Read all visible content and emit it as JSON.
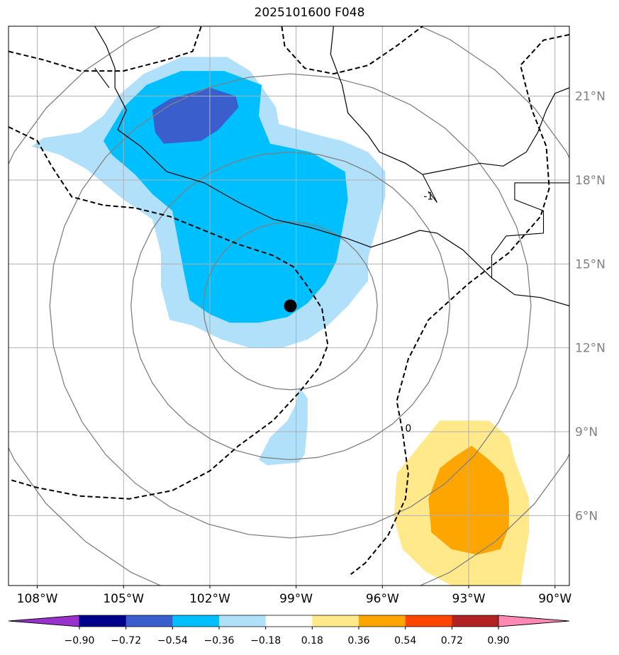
{
  "title": "2025101600 F048",
  "chart_data": {
    "type": "map-contour",
    "title": "2025101600 F048",
    "lon_range": [
      -109,
      -89.5
    ],
    "lat_range": [
      3.5,
      23.5
    ],
    "x_ticks": [
      {
        "value": -108,
        "label": "108°W"
      },
      {
        "value": -105,
        "label": "105°W"
      },
      {
        "value": -102,
        "label": "102°W"
      },
      {
        "value": -99,
        "label": "99°W"
      },
      {
        "value": -96,
        "label": "96°W"
      },
      {
        "value": -93,
        "label": "93°W"
      },
      {
        "value": -90,
        "label": "90°W"
      }
    ],
    "y_ticks": [
      {
        "value": 6,
        "label": "6°N"
      },
      {
        "value": 9,
        "label": "9°N"
      },
      {
        "value": 12,
        "label": "12°N"
      },
      {
        "value": 15,
        "label": "15°N"
      },
      {
        "value": 18,
        "label": "18°N"
      },
      {
        "value": 21,
        "label": "21°N"
      }
    ],
    "storm_center": {
      "lon": -99.2,
      "lat": 13.5
    },
    "range_rings": [
      {
        "lon": -99.2,
        "lat": 13.5,
        "radius_deg": 3
      },
      {
        "lon": -99.2,
        "lat": 13.5,
        "radius_deg": 5.5
      },
      {
        "lon": -99.2,
        "lat": 13.5,
        "radius_deg": 8.3
      },
      {
        "lon": -99.2,
        "lat": 13.5,
        "radius_deg": 11
      }
    ],
    "colorbar": {
      "labels": [
        "−0.90",
        "−0.72",
        "−0.54",
        "−0.36",
        "−0.18",
        "0.18",
        "0.36",
        "0.54",
        "0.72",
        "0.90"
      ],
      "colors": [
        "#9932cc",
        "#00008b",
        "#3a5fcd",
        "#00bfff",
        "#b0e0fa",
        "#ffffff",
        "#ffe98a",
        "#ffa500",
        "#ff4500",
        "#b22222",
        "#ff88b4"
      ]
    },
    "shaded_regions": [
      {
        "level": "-0.36 to -0.18",
        "color": "#b0e0fa",
        "points": [
          [
            -107.8,
            19.5
          ],
          [
            -106.5,
            19.7
          ],
          [
            -105.7,
            20.3
          ],
          [
            -105.2,
            21.0
          ],
          [
            -104.3,
            21.8
          ],
          [
            -103.0,
            22.4
          ],
          [
            -101.4,
            22.4
          ],
          [
            -100.6,
            21.9
          ],
          [
            -100.1,
            21.2
          ],
          [
            -99.7,
            20.6
          ],
          [
            -99.6,
            20.0
          ],
          [
            -98.2,
            19.6
          ],
          [
            -97.4,
            19.4
          ],
          [
            -96.5,
            19.0
          ],
          [
            -95.9,
            18.3
          ],
          [
            -95.9,
            17.4
          ],
          [
            -96.2,
            16.3
          ],
          [
            -96.5,
            15.2
          ],
          [
            -96.5,
            14.4
          ],
          [
            -97.2,
            13.5
          ],
          [
            -97.9,
            12.8
          ],
          [
            -98.6,
            12.3
          ],
          [
            -99.5,
            12.0
          ],
          [
            -100.6,
            12.0
          ],
          [
            -101.6,
            12.3
          ],
          [
            -102.6,
            12.8
          ],
          [
            -103.4,
            13.0
          ],
          [
            -103.7,
            14.2
          ],
          [
            -103.7,
            15.4
          ],
          [
            -104.0,
            16.6
          ],
          [
            -105.0,
            17.3
          ],
          [
            -106.3,
            18.4
          ],
          [
            -107.2,
            18.9
          ],
          [
            -108.2,
            19.2
          ]
        ]
      },
      {
        "level": "-0.54 to -0.36",
        "color": "#00bfff",
        "points": [
          [
            -105.7,
            19.4
          ],
          [
            -105.0,
            20.6
          ],
          [
            -104.2,
            21.4
          ],
          [
            -103.0,
            21.9
          ],
          [
            -101.5,
            21.9
          ],
          [
            -100.2,
            21.4
          ],
          [
            -100.3,
            20.3
          ],
          [
            -99.9,
            19.3
          ],
          [
            -98.5,
            19.0
          ],
          [
            -97.3,
            18.3
          ],
          [
            -97.2,
            17.3
          ],
          [
            -97.4,
            16.2
          ],
          [
            -97.6,
            15.1
          ],
          [
            -98.0,
            14.3
          ],
          [
            -98.6,
            13.6
          ],
          [
            -99.3,
            13.1
          ],
          [
            -100.3,
            12.9
          ],
          [
            -101.3,
            12.9
          ],
          [
            -102.0,
            13.2
          ],
          [
            -102.7,
            13.7
          ],
          [
            -102.9,
            14.7
          ],
          [
            -103.1,
            15.8
          ],
          [
            -103.3,
            16.9
          ],
          [
            -104.0,
            17.5
          ],
          [
            -104.6,
            18.2
          ],
          [
            -105.4,
            18.9
          ]
        ]
      },
      {
        "level": "-0.72 to -0.54",
        "color": "#3a5fcd",
        "points": [
          [
            -104.0,
            20.5
          ],
          [
            -103.4,
            20.9
          ],
          [
            -102.0,
            21.3
          ],
          [
            -101.1,
            21.0
          ],
          [
            -101.0,
            20.6
          ],
          [
            -101.7,
            19.8
          ],
          [
            -102.3,
            19.4
          ],
          [
            -103.6,
            19.3
          ],
          [
            -103.9,
            19.7
          ]
        ]
      },
      {
        "level": "-0.36 to -0.18",
        "color": "#b0e0fa",
        "points": [
          [
            -98.9,
            10.6
          ],
          [
            -98.6,
            10.2
          ],
          [
            -98.6,
            9.3
          ],
          [
            -98.7,
            8.2
          ],
          [
            -98.9,
            7.9
          ],
          [
            -100.0,
            7.8
          ],
          [
            -100.3,
            8.0
          ],
          [
            -99.9,
            8.8
          ],
          [
            -99.3,
            9.4
          ],
          [
            -99.0,
            10.0
          ]
        ]
      },
      {
        "level": "0.18 to 0.36",
        "color": "#ffe98a",
        "points": [
          [
            -94.0,
            9.4
          ],
          [
            -92.3,
            9.4
          ],
          [
            -91.6,
            8.8
          ],
          [
            -91.4,
            8.0
          ],
          [
            -90.9,
            6.6
          ],
          [
            -90.9,
            5.4
          ],
          [
            -91.2,
            3.5
          ],
          [
            -93.6,
            3.5
          ],
          [
            -94.5,
            4.0
          ],
          [
            -95.3,
            4.8
          ],
          [
            -95.6,
            5.9
          ],
          [
            -95.5,
            7.5
          ],
          [
            -94.8,
            8.4
          ]
        ]
      },
      {
        "level": "0.36 to 0.54",
        "color": "#ffa500",
        "points": [
          [
            -92.9,
            8.5
          ],
          [
            -92.3,
            8.0
          ],
          [
            -91.8,
            7.5
          ],
          [
            -91.6,
            6.6
          ],
          [
            -91.6,
            5.6
          ],
          [
            -91.9,
            4.8
          ],
          [
            -92.7,
            4.6
          ],
          [
            -93.6,
            4.8
          ],
          [
            -94.3,
            5.4
          ],
          [
            -94.4,
            6.6
          ],
          [
            -94.0,
            7.7
          ],
          [
            -93.5,
            8.1
          ]
        ]
      }
    ],
    "contour_labels": [
      {
        "lon": -94.4,
        "lat": 17.3,
        "text": "-1"
      },
      {
        "lon": -95.1,
        "lat": 9.0,
        "text": "0"
      }
    ],
    "coastlines": [
      [
        [
          -106.0,
          23.5
        ],
        [
          -105.6,
          22.8
        ],
        [
          -105.3,
          22.0
        ],
        [
          -105.3,
          21.3
        ],
        [
          -104.9,
          20.5
        ],
        [
          -105.2,
          19.8
        ],
        [
          -104.4,
          19.2
        ],
        [
          -103.5,
          18.3
        ],
        [
          -102.2,
          17.9
        ],
        [
          -101.0,
          17.2
        ],
        [
          -99.8,
          16.6
        ],
        [
          -98.5,
          16.3
        ],
        [
          -97.2,
          15.9
        ],
        [
          -96.4,
          15.6
        ],
        [
          -95.5,
          15.9
        ],
        [
          -94.7,
          16.2
        ],
        [
          -94.1,
          16.1
        ],
        [
          -93.2,
          15.5
        ],
        [
          -92.2,
          14.5
        ],
        [
          -91.4,
          13.9
        ],
        [
          -90.5,
          13.8
        ],
        [
          -89.5,
          13.5
        ]
      ],
      [
        [
          -97.7,
          23.5
        ],
        [
          -97.8,
          22.5
        ],
        [
          -97.4,
          21.4
        ],
        [
          -97.2,
          20.4
        ],
        [
          -96.5,
          19.6
        ],
        [
          -96.1,
          19.0
        ],
        [
          -95.2,
          18.6
        ],
        [
          -94.6,
          18.2
        ],
        [
          -93.6,
          18.4
        ],
        [
          -92.6,
          18.6
        ],
        [
          -91.8,
          18.5
        ],
        [
          -91.0,
          19.0
        ],
        [
          -90.6,
          19.7
        ],
        [
          -90.3,
          20.5
        ],
        [
          -90.0,
          21.1
        ],
        [
          -89.5,
          21.3
        ]
      ],
      [
        [
          -106.0,
          22.0
        ],
        [
          -105.5,
          21.3
        ]
      ]
    ],
    "borders": [
      [
        [
          -92.2,
          14.5
        ],
        [
          -92.2,
          15.3
        ],
        [
          -91.7,
          16.0
        ],
        [
          -90.4,
          16.1
        ],
        [
          -90.4,
          16.9
        ],
        [
          -91.4,
          17.3
        ],
        [
          -91.4,
          17.9
        ],
        [
          -89.5,
          17.9
        ]
      ],
      [
        [
          -94.6,
          18.2
        ],
        [
          -94.1,
          17.2
        ],
        [
          -94.4,
          17.6
        ]
      ]
    ],
    "dashed_contours": [
      [
        [
          -109.0,
          22.6
        ],
        [
          -107.8,
          22.3
        ],
        [
          -106.5,
          21.9
        ],
        [
          -105.0,
          21.9
        ],
        [
          -103.5,
          22.3
        ],
        [
          -102.6,
          22.6
        ],
        [
          -102.3,
          23.5
        ]
      ],
      [
        [
          -109.0,
          19.9
        ],
        [
          -108.0,
          19.4
        ],
        [
          -107.5,
          18.5
        ],
        [
          -106.8,
          17.4
        ],
        [
          -105.7,
          17.1
        ],
        [
          -104.6,
          17.0
        ],
        [
          -103.4,
          16.7
        ],
        [
          -102.2,
          16.2
        ],
        [
          -101.0,
          15.7
        ],
        [
          -99.8,
          15.3
        ],
        [
          -99.1,
          14.9
        ],
        [
          -98.6,
          14.2
        ],
        [
          -98.1,
          13.4
        ],
        [
          -97.9,
          12.1
        ],
        [
          -98.2,
          11.3
        ],
        [
          -98.9,
          10.4
        ],
        [
          -99.8,
          9.4
        ],
        [
          -101.0,
          8.5
        ],
        [
          -102.0,
          7.6
        ],
        [
          -103.3,
          6.9
        ],
        [
          -104.8,
          6.6
        ],
        [
          -106.5,
          6.7
        ],
        [
          -108.0,
          7.0
        ],
        [
          -109.0,
          7.3
        ]
      ],
      [
        [
          -99.5,
          23.5
        ],
        [
          -99.4,
          22.8
        ],
        [
          -98.7,
          22.0
        ],
        [
          -97.7,
          21.8
        ],
        [
          -96.5,
          22.1
        ],
        [
          -95.5,
          22.8
        ],
        [
          -94.6,
          23.5
        ]
      ],
      [
        [
          -89.5,
          23.2
        ],
        [
          -90.4,
          23.0
        ],
        [
          -91.2,
          22.1
        ],
        [
          -90.8,
          20.5
        ],
        [
          -90.3,
          19.2
        ],
        [
          -90.2,
          17.7
        ],
        [
          -90.5,
          16.7
        ],
        [
          -91.6,
          15.4
        ],
        [
          -93.0,
          14.3
        ],
        [
          -94.4,
          13.0
        ],
        [
          -95.1,
          11.6
        ],
        [
          -95.5,
          10.1
        ],
        [
          -95.3,
          9.0
        ],
        [
          -95.1,
          7.5
        ],
        [
          -95.2,
          6.6
        ],
        [
          -95.8,
          5.3
        ],
        [
          -96.6,
          4.3
        ],
        [
          -97.1,
          3.9
        ]
      ]
    ]
  }
}
